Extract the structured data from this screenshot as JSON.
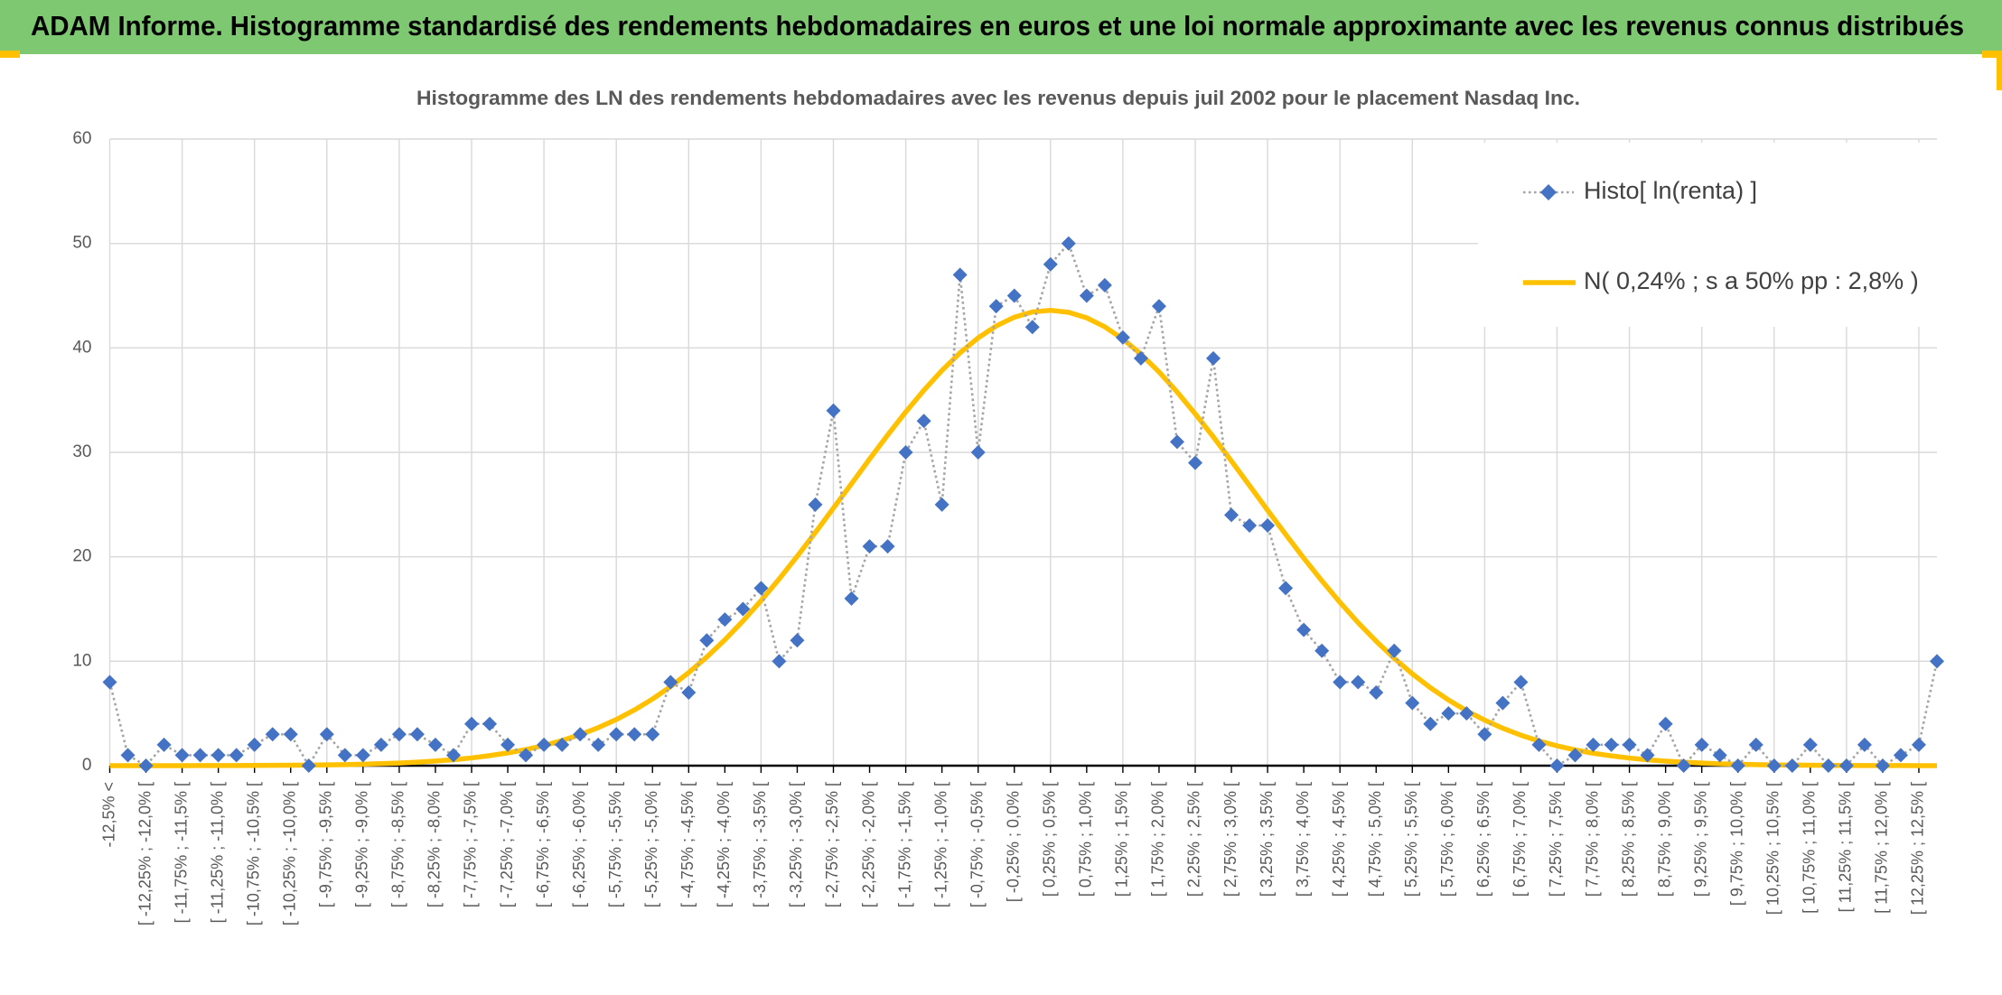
{
  "header": {
    "title": "ADAM Informe. Histogramme standardisé des rendements hebdomadaires en euros et une loi normale approximante avec les revenus connus distribués"
  },
  "chart_data": {
    "type": "line",
    "title": "Histogramme des LN des rendements hebdomadaires avec les revenus depuis juil 2002 pour le placement Nasdaq Inc.",
    "categories": [
      "-12,5% <",
      null,
      "[ -12,25% ; -12,0% [",
      null,
      "[ -11,75% ; -11,5% [",
      null,
      "[ -11,25% ; -11,0% [",
      null,
      "[ -10,75% ; -10,5% [",
      null,
      "[ -10,25% ; -10,0% [",
      null,
      "[ -9,75% ; -9,5% [",
      null,
      "[ -9,25% ; -9,0% [",
      null,
      "[ -8,75% ; -8,5% [",
      null,
      "[ -8,25% ; -8,0% [",
      null,
      "[ -7,75% ; -7,5% [",
      null,
      "[ -7,25% ; -7,0% [",
      null,
      "[ -6,75% ; -6,5% [",
      null,
      "[ -6,25% ; -6,0% [",
      null,
      "[ -5,75% ; -5,5% [",
      null,
      "[ -5,25% ; -5,0% [",
      null,
      "[ -4,75% ; -4,5% [",
      null,
      "[ -4,25% ; -4,0% [",
      null,
      "[ -3,75% ; -3,5% [",
      null,
      "[ -3,25% ; -3,0% [",
      null,
      "[ -2,75% ; -2,5% [",
      null,
      "[ -2,25% ; -2,0% [",
      null,
      "[ -1,75% ; -1,5% [",
      null,
      "[ -1,25% ; -1,0% [",
      null,
      "[ -0,75% ; -0,5% [",
      null,
      "[ -0,25% ; 0,0% [",
      null,
      "[ 0,25% ; 0,5% [",
      null,
      "[ 0,75% ; 1,0% [",
      null,
      "[ 1,25% ; 1,5% [",
      null,
      "[ 1,75% ; 2,0% [",
      null,
      "[ 2,25% ; 2,5% [",
      null,
      "[ 2,75% ; 3,0% [",
      null,
      "[ 3,25% ; 3,5% [",
      null,
      "[ 3,75% ; 4,0% [",
      null,
      "[ 4,25% ; 4,5% [",
      null,
      "[ 4,75% ; 5,0% [",
      null,
      "[ 5,25% ; 5,5% [",
      null,
      "[ 5,75% ; 6,0% [",
      null,
      "[ 6,25% ; 6,5% [",
      null,
      "[ 6,75% ; 7,0% [",
      null,
      "[ 7,25% ; 7,5% [",
      null,
      "[ 7,75% ; 8,0% [",
      null,
      "[ 8,25% ; 8,5% [",
      null,
      "[ 8,75% ; 9,0% [",
      null,
      "[ 9,25% ; 9,5% [",
      null,
      "[ 9,75% ; 10,0% [",
      null,
      "[ 10,25% ; 10,5% [",
      null,
      "[ 10,75% ; 11,0% [",
      null,
      "[ 11,25% ; 11,5% [",
      null,
      "[ 11,75% ; 12,0% [",
      null,
      "[ 12,25% ; 12,5% [",
      null
    ],
    "series": [
      {
        "name": "Histo[ ln(renta) ]",
        "color": "#4472c4",
        "line_color": "#a5a5a5",
        "marker": "diamond",
        "dash": "dotted",
        "values": [
          8,
          1,
          0,
          2,
          1,
          1,
          1,
          1,
          2,
          3,
          3,
          0,
          3,
          1,
          1,
          2,
          3,
          3,
          2,
          1,
          4,
          4,
          2,
          1,
          2,
          2,
          3,
          2,
          3,
          3,
          3,
          8,
          7,
          12,
          14,
          15,
          17,
          10,
          12,
          25,
          34,
          16,
          21,
          21,
          30,
          33,
          25,
          47,
          30,
          44,
          45,
          42,
          48,
          50,
          45,
          46,
          41,
          39,
          44,
          31,
          29,
          39,
          24,
          23,
          23,
          17,
          13,
          11,
          8,
          8,
          7,
          11,
          6,
          4,
          5,
          5,
          3,
          6,
          8,
          2,
          0,
          1,
          2,
          2,
          2,
          1,
          4,
          0,
          2,
          1,
          0,
          2,
          0,
          0,
          2,
          0,
          0,
          2,
          0,
          1,
          2,
          10
        ]
      },
      {
        "name": "N( 0,24% ; s a 50% pp : 2,8% )",
        "color": "#ffc000",
        "marker": "none",
        "dash": "solid",
        "values": [
          0,
          0,
          0,
          0,
          0,
          0.01,
          0.01,
          0.01,
          0.02,
          0.03,
          0.04,
          0.05,
          0.08,
          0.1,
          0.14,
          0.19,
          0.25,
          0.33,
          0.44,
          0.57,
          0.74,
          0.96,
          1.22,
          1.54,
          1.93,
          2.41,
          2.97,
          3.64,
          4.42,
          5.33,
          6.38,
          7.57,
          8.91,
          10.4,
          12.05,
          13.85,
          15.8,
          17.87,
          20.05,
          22.32,
          24.66,
          27,
          29.36,
          31.66,
          33.87,
          35.94,
          37.84,
          39.53,
          40.96,
          42.1,
          42.94,
          43.44,
          43.6,
          43.41,
          42.88,
          42.02,
          40.85,
          39.4,
          37.7,
          35.78,
          33.69,
          31.48,
          29.17,
          26.82,
          24.46,
          22.14,
          19.87,
          17.7,
          15.64,
          13.7,
          11.92,
          10.28,
          8.79,
          7.46,
          6.29,
          5.25,
          4.36,
          3.58,
          2.92,
          2.36,
          1.9,
          1.51,
          1.19,
          0.94,
          0.73,
          0.56,
          0.43,
          0.33,
          0.25,
          0.18,
          0.14,
          0.1,
          0.07,
          0.05,
          0.04,
          0.03,
          0.02,
          0.01,
          0.01,
          0.01,
          0,
          0
        ]
      }
    ],
    "ylim": [
      0,
      60
    ],
    "yticks": [
      0,
      10,
      20,
      30,
      40,
      50,
      60
    ],
    "grid": true,
    "legend": "top-right"
  }
}
